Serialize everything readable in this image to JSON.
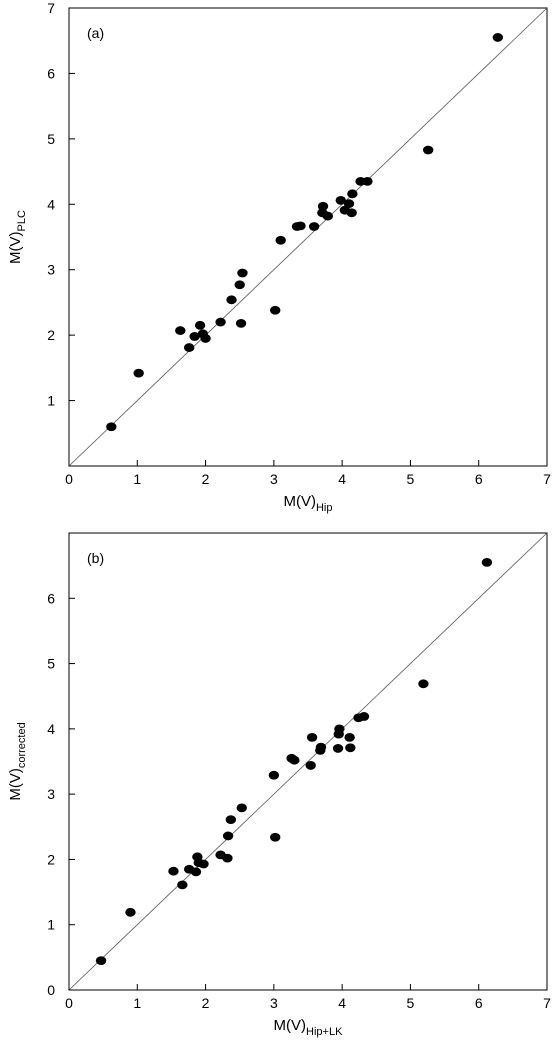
{
  "chart_data": [
    {
      "type": "scatter",
      "panel_label": "(a)",
      "xlabel": "M(V)",
      "xlabel_sub": "Hip",
      "ylabel": "M(V)",
      "ylabel_sub": "PLC",
      "xlim": [
        0,
        7
      ],
      "ylim": [
        0,
        7
      ],
      "xticks": [
        0,
        1,
        2,
        3,
        4,
        5,
        6,
        7
      ],
      "yticks": [
        1,
        2,
        3,
        4,
        5,
        6,
        7
      ],
      "reference_line": "y = x",
      "points": [
        [
          0.62,
          0.6
        ],
        [
          1.02,
          1.42
        ],
        [
          1.63,
          2.07
        ],
        [
          1.76,
          1.81
        ],
        [
          1.84,
          1.98
        ],
        [
          1.92,
          2.15
        ],
        [
          1.96,
          2.02
        ],
        [
          2.0,
          1.95
        ],
        [
          2.22,
          2.2
        ],
        [
          2.38,
          2.54
        ],
        [
          2.5,
          2.77
        ],
        [
          2.52,
          2.18
        ],
        [
          2.54,
          2.95
        ],
        [
          3.02,
          2.38
        ],
        [
          3.1,
          3.45
        ],
        [
          3.34,
          3.66
        ],
        [
          3.39,
          3.67
        ],
        [
          3.59,
          3.66
        ],
        [
          3.71,
          3.87
        ],
        [
          3.72,
          3.97
        ],
        [
          3.79,
          3.82
        ],
        [
          3.98,
          4.06
        ],
        [
          4.04,
          3.91
        ],
        [
          4.1,
          4.01
        ],
        [
          4.14,
          3.87
        ],
        [
          4.15,
          4.16
        ],
        [
          4.27,
          4.35
        ],
        [
          4.37,
          4.35
        ],
        [
          5.26,
          4.83
        ],
        [
          6.28,
          6.55
        ]
      ]
    },
    {
      "type": "scatter",
      "panel_label": "(b)",
      "xlabel": "M(V)",
      "xlabel_sub": "Hip+LK",
      "ylabel": "M(V)",
      "ylabel_sub": "corrected",
      "xlim": [
        0,
        7
      ],
      "ylim": [
        0,
        7
      ],
      "xticks": [
        0,
        1,
        2,
        3,
        4,
        5,
        6,
        7
      ],
      "yticks": [
        0,
        1,
        2,
        3,
        4,
        5,
        6
      ],
      "reference_line": "y = x",
      "points": [
        [
          0.47,
          0.45
        ],
        [
          0.9,
          1.19
        ],
        [
          1.53,
          1.82
        ],
        [
          1.66,
          1.61
        ],
        [
          1.76,
          1.85
        ],
        [
          1.86,
          1.81
        ],
        [
          1.88,
          2.04
        ],
        [
          1.9,
          1.95
        ],
        [
          1.97,
          1.93
        ],
        [
          2.22,
          2.07
        ],
        [
          2.32,
          2.02
        ],
        [
          2.33,
          2.36
        ],
        [
          2.37,
          2.61
        ],
        [
          2.53,
          2.79
        ],
        [
          3.0,
          3.29
        ],
        [
          3.02,
          2.34
        ],
        [
          3.26,
          3.55
        ],
        [
          3.3,
          3.52
        ],
        [
          3.54,
          3.44
        ],
        [
          3.56,
          3.87
        ],
        [
          3.68,
          3.67
        ],
        [
          3.69,
          3.72
        ],
        [
          3.94,
          3.7
        ],
        [
          3.95,
          3.92
        ],
        [
          3.96,
          4.0
        ],
        [
          4.11,
          3.87
        ],
        [
          4.12,
          3.71
        ],
        [
          4.24,
          4.17
        ],
        [
          4.32,
          4.19
        ],
        [
          5.19,
          4.69
        ],
        [
          6.12,
          6.55
        ]
      ]
    }
  ]
}
